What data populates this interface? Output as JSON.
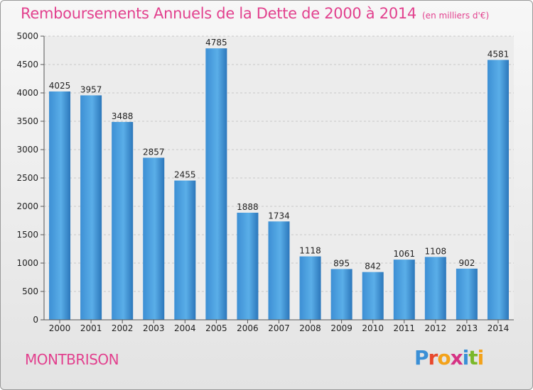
{
  "header": {
    "title": "Remboursements Annuels de la Dette de 2000 à 2014",
    "unit": "(en milliers d'€)"
  },
  "footer": {
    "town": "MONTBRISON",
    "logo_letters": [
      "P",
      "r",
      "o",
      "x",
      "i",
      "t",
      "i"
    ],
    "logo_colors": [
      "#3a8fd6",
      "#e8482c",
      "#f3a21a",
      "#d63384",
      "#3a8fd6",
      "#7ab829",
      "#f3a21a"
    ]
  },
  "colors": {
    "bar": "#4a9fe0",
    "bar_dark": "#2b74b8",
    "title": "#e2418e"
  },
  "chart_data": {
    "type": "bar",
    "title": "Remboursements Annuels de la Dette de 2000 à 2014",
    "categories": [
      "2000",
      "2001",
      "2002",
      "2003",
      "2004",
      "2005",
      "2006",
      "2007",
      "2008",
      "2009",
      "2010",
      "2011",
      "2012",
      "2013",
      "2014"
    ],
    "values": [
      4025,
      3957,
      3488,
      2857,
      2455,
      4785,
      1888,
      1734,
      1118,
      895,
      842,
      1061,
      1108,
      902,
      4581
    ],
    "ylim": [
      0,
      5000
    ],
    "yticks": [
      0,
      500,
      1000,
      1500,
      2000,
      2500,
      3000,
      3500,
      4000,
      4500,
      5000
    ],
    "grid": true,
    "legend": "none"
  }
}
